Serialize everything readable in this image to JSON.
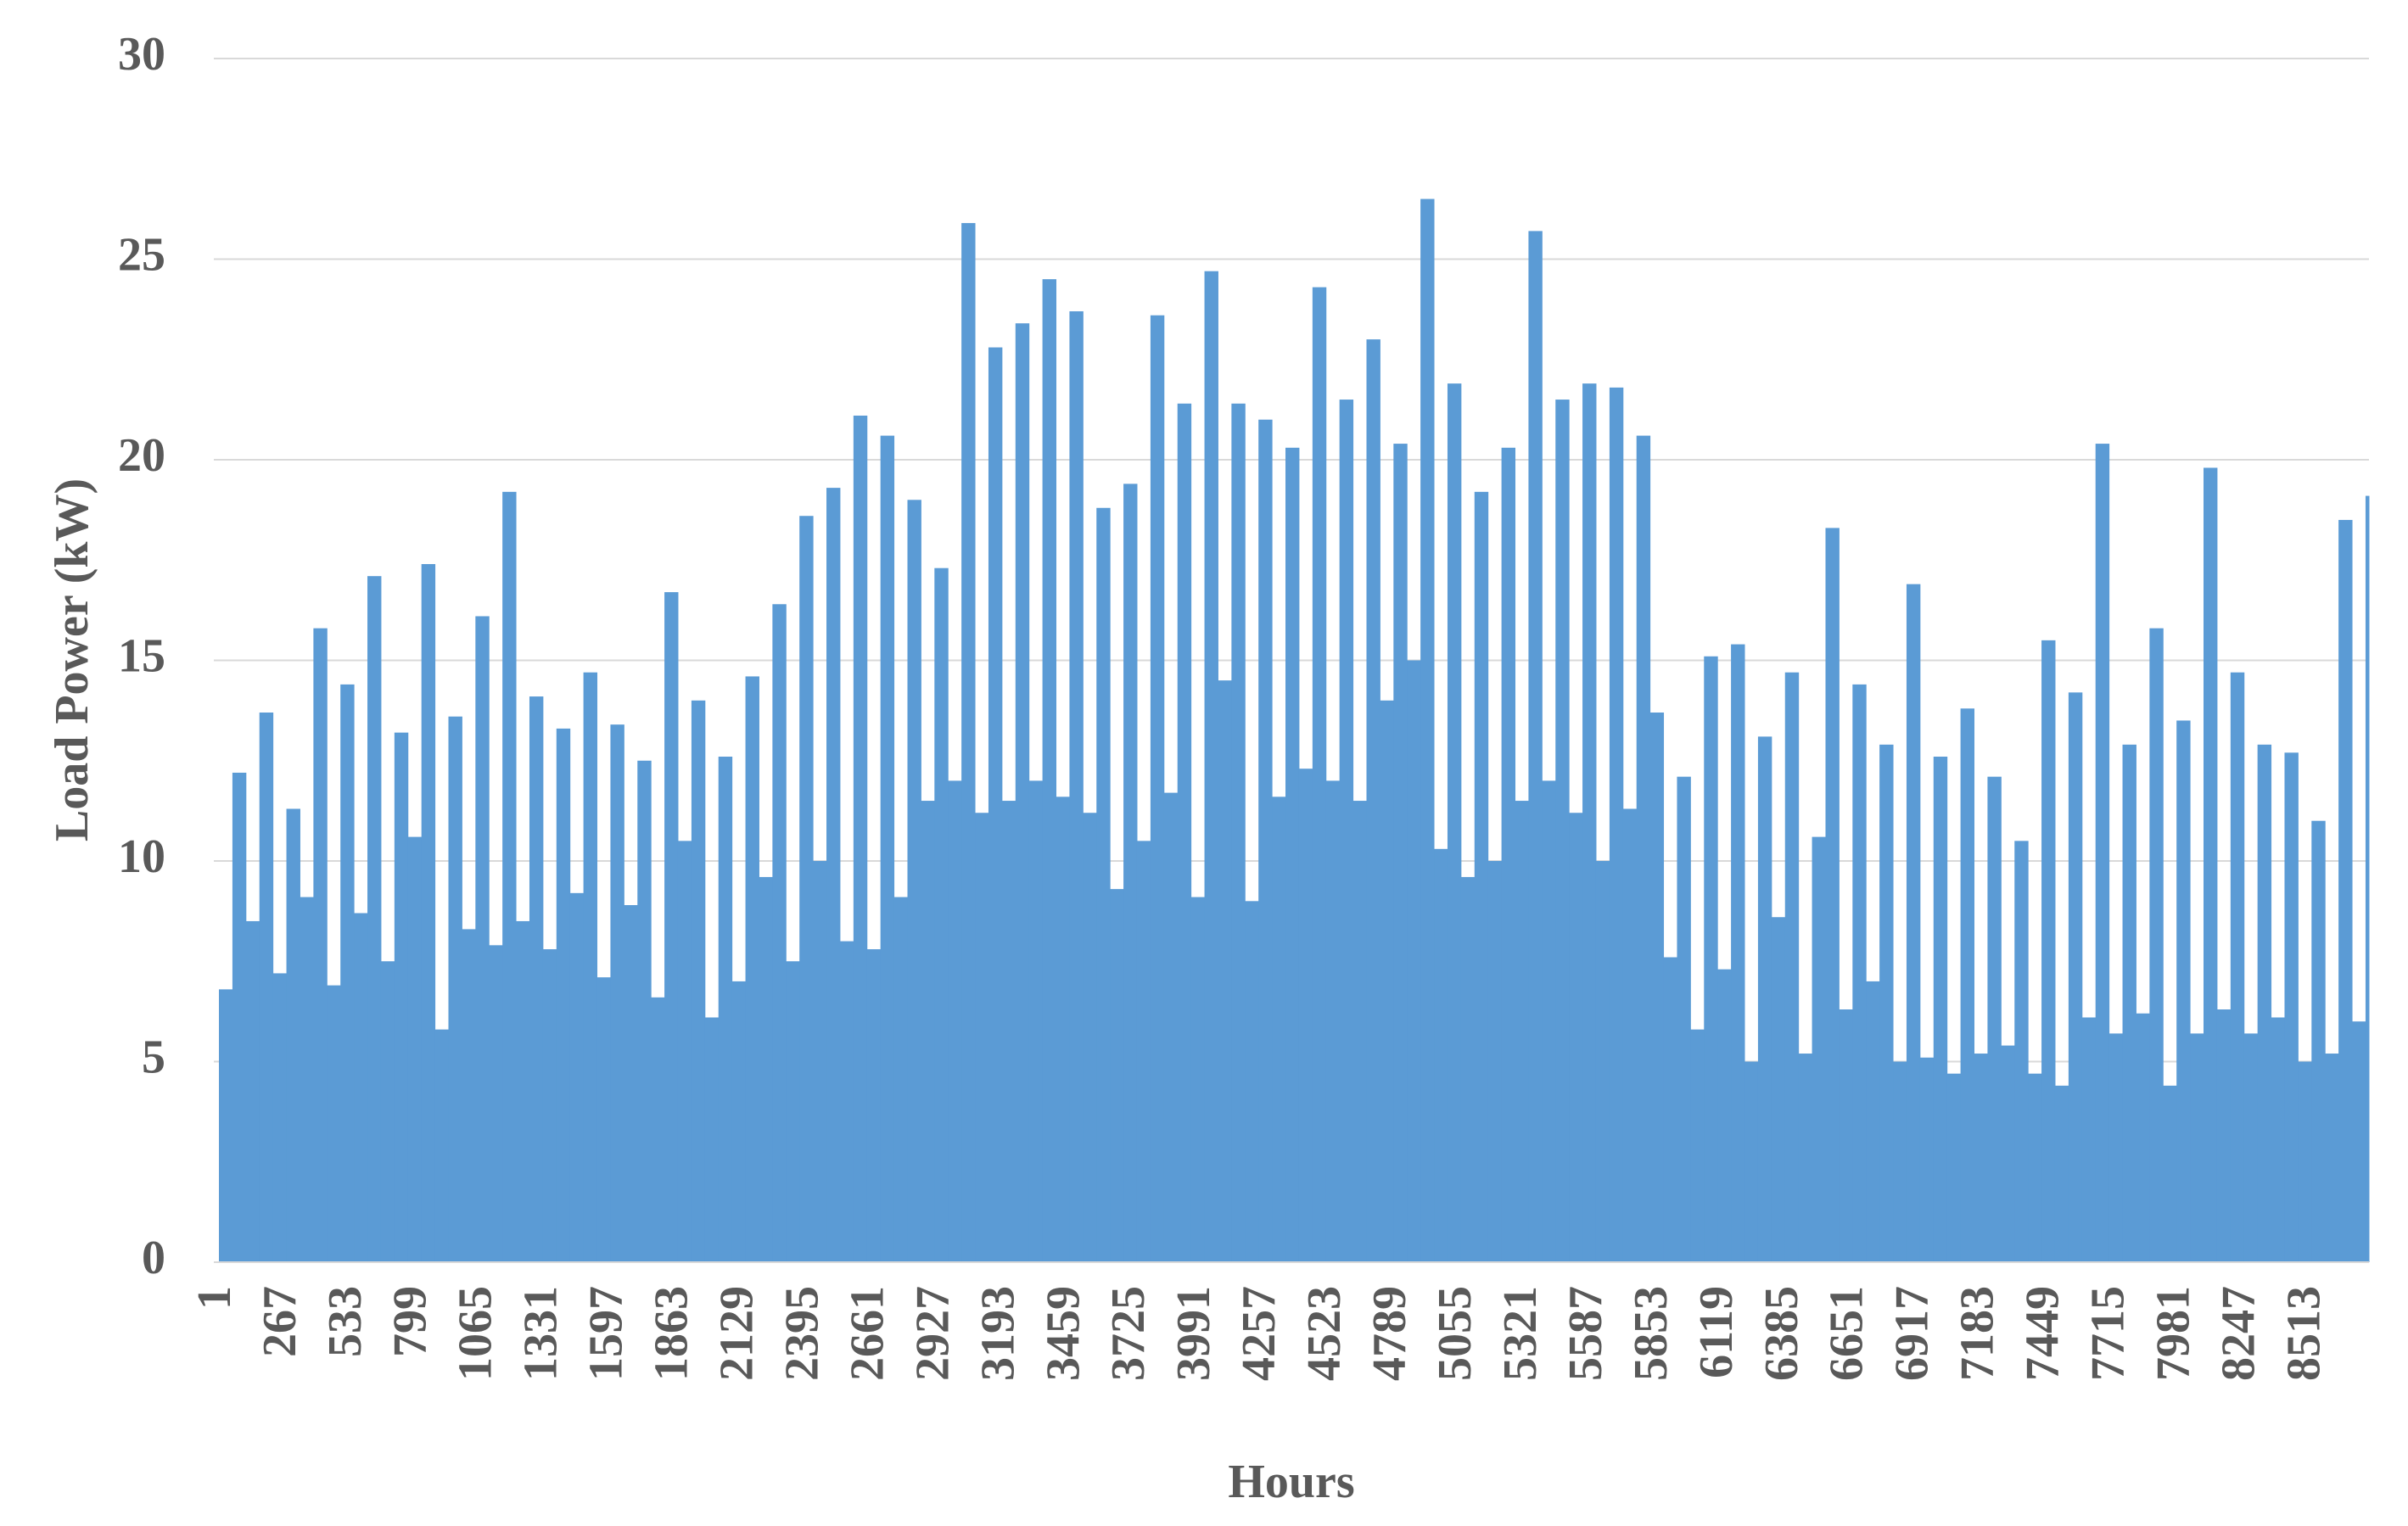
{
  "chart_data": {
    "type": "bar",
    "x_label": "Hours",
    "y_label": "Load Power (kW)",
    "color": "#5b9bd5",
    "grid": true,
    "xlim": [
      1,
      8760
    ],
    "ylim": [
      0,
      30
    ],
    "yticks": [
      0,
      5,
      10,
      15,
      20,
      25,
      30
    ],
    "xticks": [
      1,
      267,
      533,
      799,
      1065,
      1331,
      1597,
      1863,
      2129,
      2395,
      2661,
      2927,
      3193,
      3459,
      3725,
      3991,
      4257,
      4523,
      4789,
      5055,
      5321,
      5587,
      5853,
      6119,
      6385,
      6651,
      6917,
      7183,
      7449,
      7715,
      7981,
      8247,
      8513
    ],
    "x": [
      1,
      56,
      111,
      166,
      221,
      276,
      331,
      386,
      441,
      496,
      551,
      606,
      661,
      716,
      771,
      826,
      881,
      936,
      991,
      1046,
      1101,
      1156,
      1211,
      1266,
      1321,
      1376,
      1431,
      1486,
      1541,
      1596,
      1651,
      1706,
      1761,
      1816,
      1871,
      1926,
      1981,
      2036,
      2091,
      2146,
      2201,
      2256,
      2311,
      2366,
      2421,
      2476,
      2531,
      2586,
      2641,
      2696,
      2751,
      2806,
      2861,
      2916,
      2971,
      3026,
      3081,
      3136,
      3191,
      3246,
      3301,
      3356,
      3411,
      3466,
      3521,
      3576,
      3631,
      3686,
      3741,
      3796,
      3851,
      3906,
      3961,
      4016,
      4071,
      4126,
      4181,
      4236,
      4291,
      4346,
      4401,
      4456,
      4511,
      4566,
      4621,
      4676,
      4731,
      4786,
      4841,
      4896,
      4951,
      5006,
      5061,
      5116,
      5171,
      5226,
      5281,
      5336,
      5391,
      5446,
      5501,
      5556,
      5611,
      5666,
      5721,
      5776,
      5831,
      5886,
      5941,
      5996,
      6051,
      6106,
      6161,
      6216,
      6271,
      6326,
      6381,
      6436,
      6491,
      6546,
      6601,
      6656,
      6711,
      6766,
      6821,
      6876,
      6931,
      6986,
      7041,
      7096,
      7151,
      7206,
      7261,
      7316,
      7371,
      7426,
      7481,
      7536,
      7591,
      7646,
      7701,
      7756,
      7811,
      7866,
      7921,
      7976,
      8031,
      8086,
      8141,
      8196,
      8251,
      8306,
      8361,
      8416,
      8471,
      8526,
      8581,
      8636,
      8691,
      8746
    ],
    "values": [
      6.8,
      12.2,
      8.5,
      13.7,
      7.2,
      11.3,
      9.1,
      15.8,
      6.9,
      14.4,
      8.7,
      17.1,
      7.5,
      13.2,
      10.6,
      17.4,
      5.8,
      13.6,
      8.3,
      16.1,
      7.9,
      19.2,
      8.5,
      14.1,
      7.8,
      13.3,
      9.2,
      14.7,
      7.1,
      13.4,
      8.9,
      12.5,
      6.6,
      16.7,
      10.5,
      14.0,
      6.1,
      12.6,
      7.0,
      14.6,
      9.6,
      16.4,
      7.5,
      18.6,
      10.0,
      19.3,
      8.0,
      21.1,
      7.8,
      20.6,
      9.1,
      19.0,
      11.5,
      17.3,
      12.0,
      25.9,
      11.2,
      22.8,
      11.5,
      23.4,
      12.0,
      24.5,
      11.6,
      23.7,
      11.2,
      18.8,
      9.3,
      19.4,
      10.5,
      23.6,
      11.7,
      21.4,
      9.1,
      24.7,
      14.5,
      21.4,
      9.0,
      21.0,
      11.6,
      20.3,
      12.3,
      24.3,
      12.0,
      21.5,
      11.5,
      23.0,
      14.0,
      20.4,
      15.0,
      26.5,
      10.3,
      21.9,
      9.6,
      19.2,
      10.0,
      20.3,
      11.5,
      25.7,
      12.0,
      21.5,
      11.2,
      21.9,
      10.0,
      21.8,
      11.3,
      20.6,
      13.7,
      7.6,
      12.1,
      5.8,
      15.1,
      7.3,
      15.4,
      5.0,
      13.1,
      8.6,
      14.7,
      5.2,
      10.6,
      18.3,
      6.3,
      14.4,
      7.0,
      12.9,
      5.0,
      16.9,
      5.1,
      12.6,
      4.7,
      13.8,
      5.2,
      12.1,
      5.4,
      10.5,
      4.7,
      15.5,
      4.4,
      14.2,
      6.1,
      20.4,
      5.7,
      12.9,
      6.2,
      15.8,
      4.4,
      13.5,
      5.7,
      19.8,
      6.3,
      14.7,
      5.7,
      12.9,
      6.1,
      12.7,
      5.0,
      11.0,
      5.2,
      18.5,
      6.0,
      19.1
    ]
  }
}
